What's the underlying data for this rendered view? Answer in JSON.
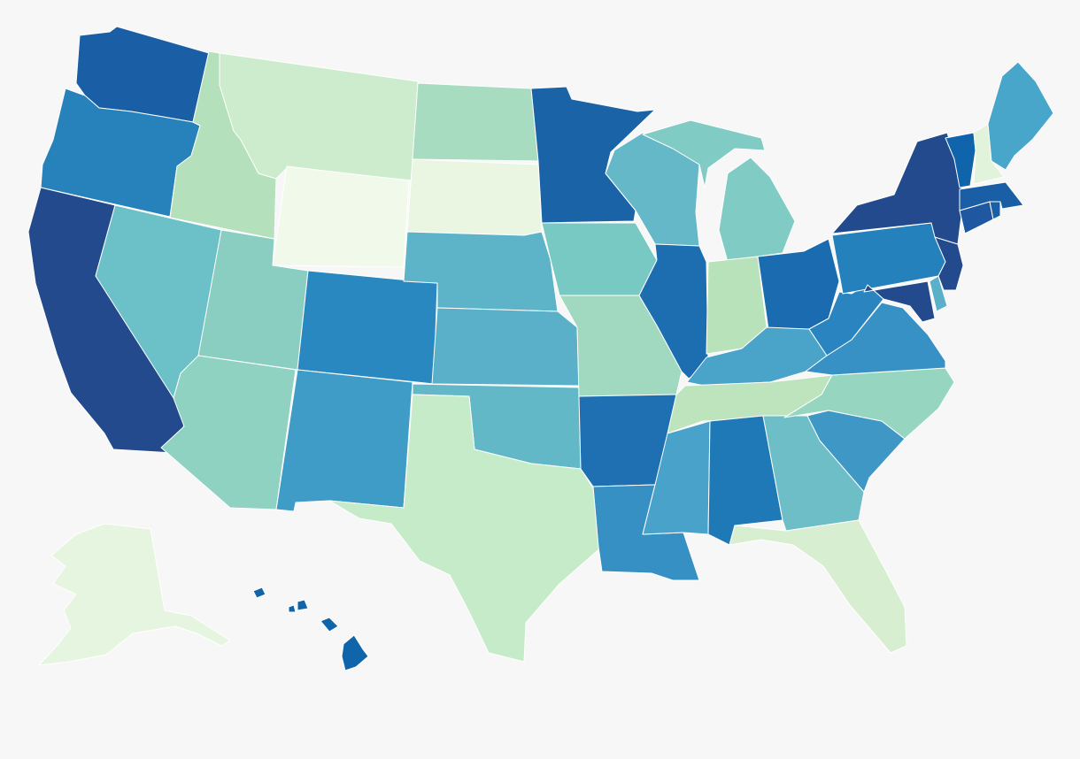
{
  "map": {
    "type": "choropleth",
    "region": "United States",
    "palette": [
      "#f1f9ea",
      "#e6f5df",
      "#d7efd0",
      "#c6ebc8",
      "#b4e1bb",
      "#a7dcc0",
      "#96d6c0",
      "#80cbc4",
      "#6cc1c8",
      "#5db4c8",
      "#48a2ca",
      "#3d95c6",
      "#2b84c0",
      "#2276b8",
      "#1a66ab",
      "#0f5fa7",
      "#1f58a0",
      "#234a8c"
    ],
    "states": [
      {
        "id": "WA",
        "color": "#1a5ea5"
      },
      {
        "id": "OR",
        "color": "#2782bc"
      },
      {
        "id": "CA",
        "color": "#234a8c"
      },
      {
        "id": "ID",
        "color": "#b4e1bb"
      },
      {
        "id": "NV",
        "color": "#6cc1c8"
      },
      {
        "id": "MT",
        "color": "#cdebcd"
      },
      {
        "id": "WY",
        "color": "#f1f9ea"
      },
      {
        "id": "UT",
        "color": "#8acec2"
      },
      {
        "id": "AZ",
        "color": "#8fd2c1"
      },
      {
        "id": "CO",
        "color": "#2a88c0"
      },
      {
        "id": "NM",
        "color": "#3f9cc7"
      },
      {
        "id": "ND",
        "color": "#a7dcc0"
      },
      {
        "id": "SD",
        "color": "#eaf6e2"
      },
      {
        "id": "NE",
        "color": "#5db4c8"
      },
      {
        "id": "KS",
        "color": "#5ab0c8"
      },
      {
        "id": "OK",
        "color": "#63b8c7"
      },
      {
        "id": "TX",
        "color": "#c6ebc8"
      },
      {
        "id": "MN",
        "color": "#1a63a7"
      },
      {
        "id": "IA",
        "color": "#78c8c4"
      },
      {
        "id": "MO",
        "color": "#a0d9bf"
      },
      {
        "id": "AR",
        "color": "#1f70b2"
      },
      {
        "id": "LA",
        "color": "#3790c3"
      },
      {
        "id": "WI",
        "color": "#64b8c8"
      },
      {
        "id": "IL",
        "color": "#1c6eb0"
      },
      {
        "id": "MI",
        "color": "#80cbc4"
      },
      {
        "id": "IN",
        "color": "#b8e3ba"
      },
      {
        "id": "OH",
        "color": "#1a6bb0"
      },
      {
        "id": "KY",
        "color": "#4aa3c9"
      },
      {
        "id": "TN",
        "color": "#bde4bd"
      },
      {
        "id": "MS",
        "color": "#48a2ca"
      },
      {
        "id": "AL",
        "color": "#2079b7"
      },
      {
        "id": "GA",
        "color": "#6dbec6"
      },
      {
        "id": "FL",
        "color": "#d7efd0"
      },
      {
        "id": "SC",
        "color": "#3f97c6"
      },
      {
        "id": "NC",
        "color": "#96d6c0"
      },
      {
        "id": "VA",
        "color": "#3891c4"
      },
      {
        "id": "WV",
        "color": "#2a84bf"
      },
      {
        "id": "PA",
        "color": "#2581bc"
      },
      {
        "id": "NY",
        "color": "#234a8c"
      },
      {
        "id": "VT",
        "color": "#0f64ab"
      },
      {
        "id": "NH",
        "color": "#e2f3dc"
      },
      {
        "id": "ME",
        "color": "#48a6ca"
      },
      {
        "id": "MA",
        "color": "#1a5ea5"
      },
      {
        "id": "RI",
        "color": "#1a5ea5"
      },
      {
        "id": "CT",
        "color": "#1f58a0"
      },
      {
        "id": "NJ",
        "color": "#234a8c"
      },
      {
        "id": "DE",
        "color": "#5ab0c8"
      },
      {
        "id": "MD",
        "color": "#234a8c"
      },
      {
        "id": "AK",
        "color": "#e6f5df"
      },
      {
        "id": "HI",
        "color": "#1064aa"
      }
    ]
  }
}
